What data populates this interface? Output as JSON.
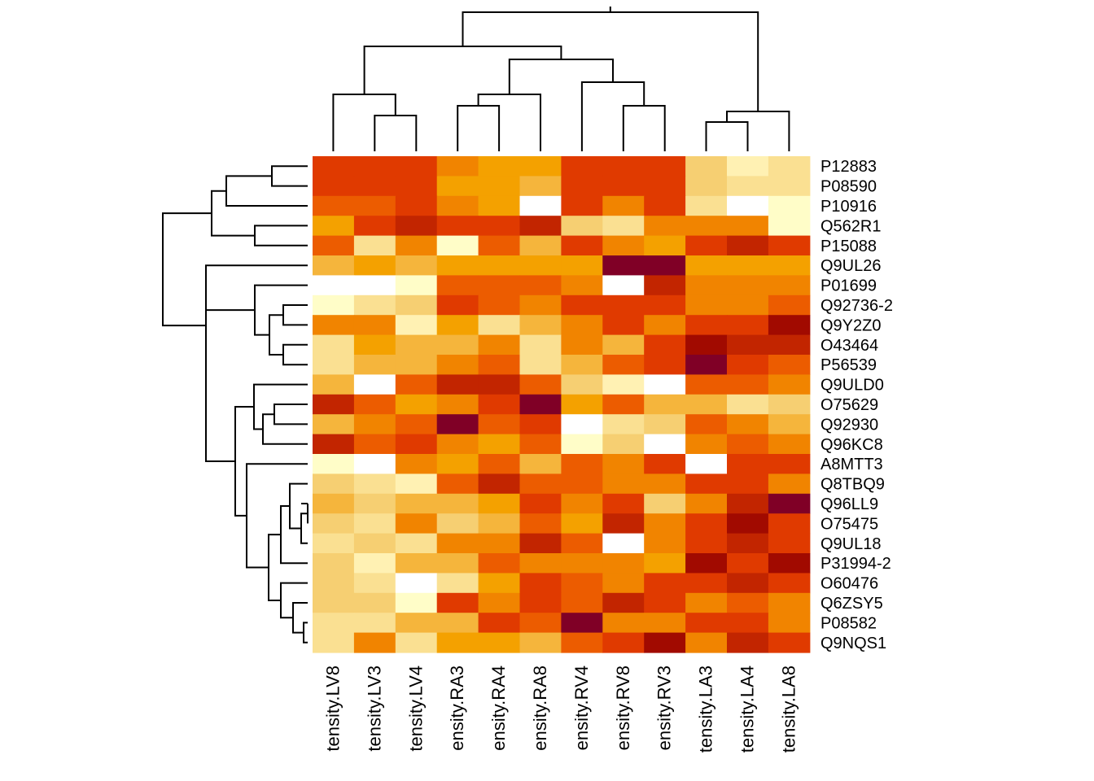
{
  "chart_data": {
    "type": "heatmap",
    "title": "",
    "xlabel": "",
    "ylabel": "",
    "legend": "none",
    "dendrograms": [
      "columns-top",
      "rows-left"
    ],
    "columns": [
      "tensity.LV8",
      "tensity.LV3",
      "tensity.LV4",
      "ensity.RA3",
      "ensity.RA4",
      "ensity.RA8",
      "ensity.RV4",
      "ensity.RV8",
      "ensity.RV3",
      "tensity.LA3",
      "tensity.LA4",
      "tensity.LA8"
    ],
    "rows": [
      "P12883",
      "P08590",
      "P10916",
      "Q562R1",
      "P15088",
      "Q9UL26",
      "P01699",
      "Q92736-2",
      "Q9Y2Z0",
      "O43464",
      "P56539",
      "Q9ULD0",
      "O75629",
      "Q92930",
      "Q96KC8",
      "A8MTT3",
      "Q8TBQ9",
      "Q96LL9",
      "O75475",
      "Q9UL18",
      "P31994-2",
      "O60476",
      "Q6ZSY5",
      "P08582",
      "Q9NQS1"
    ],
    "color_scale": [
      "#ffffff",
      "#fffdc8",
      "#fff1b3",
      "#fae092",
      "#f6cf72",
      "#f5b53c",
      "#f4a100",
      "#f18400",
      "#ec5c00",
      "#e03a00",
      "#c22500",
      "#a10a00",
      "#800026"
    ],
    "color_scale_note": "level 0 = lightest (white), level 12 = darkest (dark red)",
    "values": [
      [
        9,
        9,
        9,
        7,
        6,
        6,
        9,
        9,
        9,
        4,
        2,
        3
      ],
      [
        9,
        9,
        9,
        6,
        6,
        5,
        9,
        9,
        9,
        4,
        3,
        3
      ],
      [
        8,
        8,
        9,
        7,
        6,
        0,
        9,
        7,
        9,
        3,
        0,
        1
      ],
      [
        6,
        9,
        10,
        9,
        9,
        10,
        4,
        3,
        7,
        7,
        7,
        1
      ],
      [
        8,
        3,
        7,
        1,
        8,
        5,
        9,
        7,
        6,
        9,
        10,
        9
      ],
      [
        5,
        6,
        5,
        6,
        6,
        6,
        6,
        12,
        12,
        6,
        6,
        6
      ],
      [
        0,
        0,
        1,
        8,
        8,
        8,
        7,
        0,
        10,
        7,
        7,
        7
      ],
      [
        1,
        3,
        4,
        9,
        8,
        7,
        9,
        9,
        9,
        7,
        7,
        8
      ],
      [
        7,
        7,
        2,
        6,
        3,
        5,
        7,
        9,
        7,
        9,
        9,
        11
      ],
      [
        3,
        6,
        5,
        5,
        7,
        3,
        7,
        5,
        9,
        11,
        10,
        10
      ],
      [
        3,
        5,
        5,
        7,
        8,
        3,
        5,
        8,
        9,
        12,
        9,
        8
      ],
      [
        5,
        0,
        8,
        10,
        10,
        8,
        4,
        2,
        0,
        8,
        8,
        7
      ],
      [
        10,
        8,
        6,
        7,
        9,
        12,
        6,
        8,
        5,
        5,
        3,
        4
      ],
      [
        5,
        7,
        8,
        12,
        8,
        9,
        0,
        3,
        4,
        8,
        7,
        5
      ],
      [
        10,
        8,
        9,
        7,
        6,
        8,
        1,
        4,
        0,
        7,
        8,
        7
      ],
      [
        1,
        0,
        7,
        6,
        8,
        5,
        8,
        7,
        9,
        0,
        9,
        9
      ],
      [
        4,
        3,
        2,
        8,
        10,
        8,
        8,
        7,
        7,
        9,
        9,
        7
      ],
      [
        5,
        4,
        5,
        5,
        6,
        9,
        7,
        9,
        4,
        7,
        10,
        12
      ],
      [
        4,
        3,
        7,
        4,
        5,
        8,
        6,
        10,
        7,
        9,
        11,
        9
      ],
      [
        3,
        4,
        3,
        7,
        7,
        10,
        8,
        0,
        7,
        9,
        10,
        9
      ],
      [
        4,
        2,
        5,
        5,
        8,
        7,
        7,
        7,
        6,
        11,
        9,
        11
      ],
      [
        4,
        3,
        0,
        3,
        6,
        9,
        8,
        7,
        9,
        9,
        10,
        9
      ],
      [
        4,
        4,
        1,
        9,
        7,
        9,
        8,
        10,
        9,
        7,
        8,
        7
      ],
      [
        3,
        3,
        5,
        5,
        9,
        8,
        12,
        7,
        7,
        9,
        9,
        7
      ],
      [
        3,
        7,
        3,
        6,
        6,
        5,
        8,
        9,
        11,
        7,
        10,
        9
      ]
    ]
  }
}
